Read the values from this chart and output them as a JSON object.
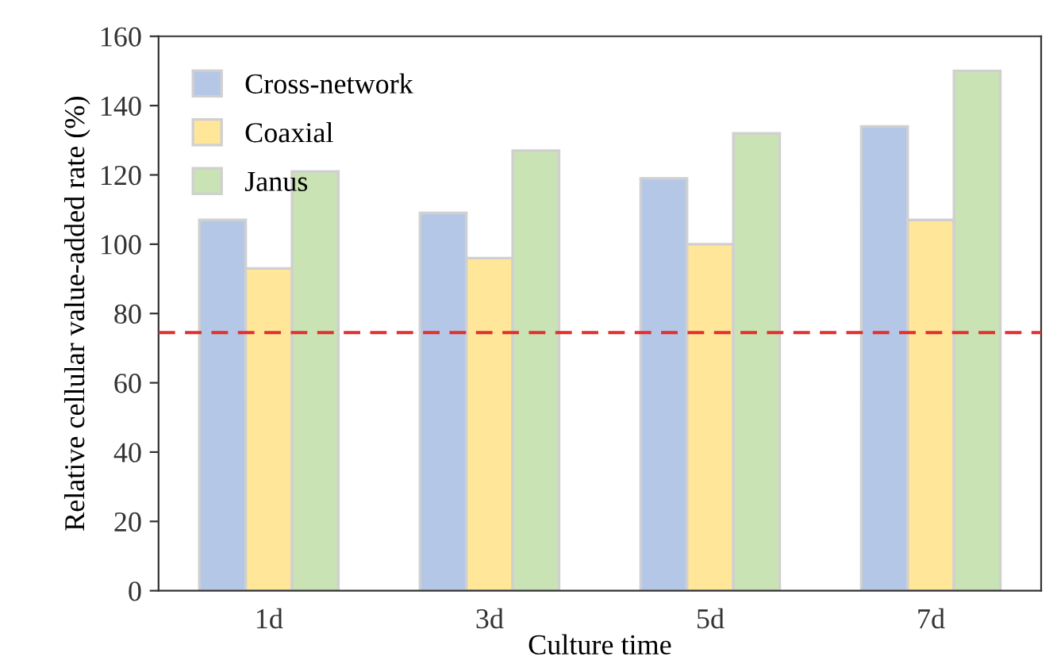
{
  "chart_data": {
    "type": "bar",
    "xlabel": "Culture time",
    "ylabel": "Relative cellular value-added rate (%)",
    "categories": [
      "1d",
      "3d",
      "5d",
      "7d"
    ],
    "series": [
      {
        "name": "Cross-network",
        "color": "#b4c7e7",
        "values": [
          107,
          109,
          119,
          134
        ]
      },
      {
        "name": "Coaxial",
        "color": "#ffe699",
        "values": [
          93,
          96,
          100,
          107
        ]
      },
      {
        "name": "Janus",
        "color": "#c9e3b4",
        "values": [
          121,
          127,
          132,
          150
        ]
      }
    ],
    "ylim": [
      0,
      160
    ],
    "yticks": [
      0,
      20,
      40,
      60,
      80,
      100,
      120,
      140,
      160
    ],
    "ref_lines": [
      {
        "axis": "y",
        "value": 74.5,
        "color": "#e03030",
        "line_style": "dashed"
      }
    ],
    "grid": false,
    "legend": "top left"
  }
}
